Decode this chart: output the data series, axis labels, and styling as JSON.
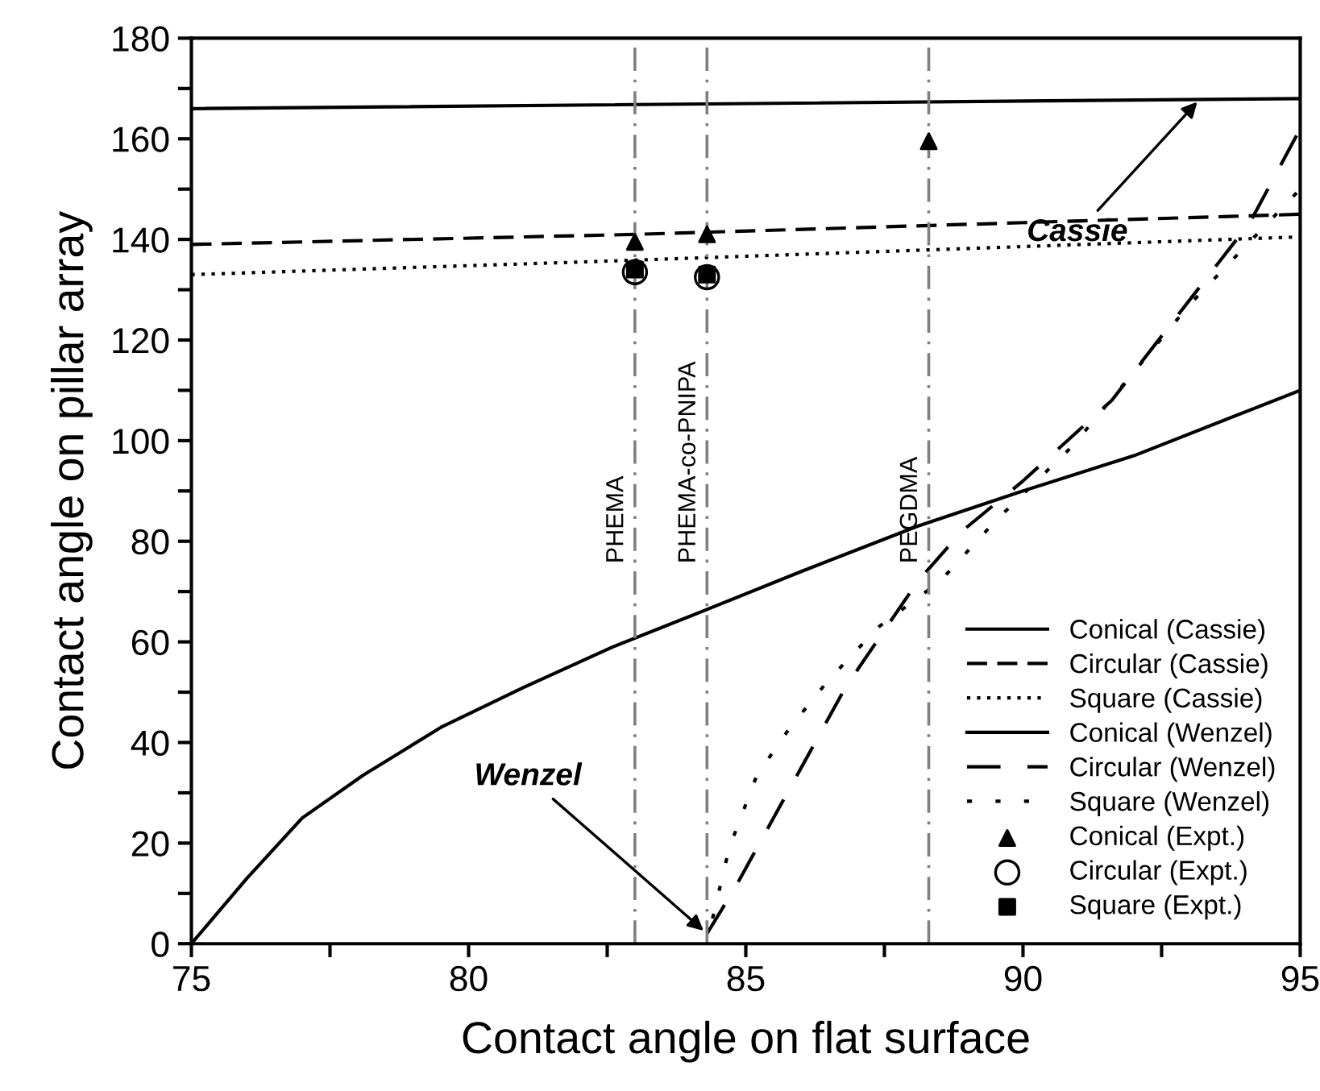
{
  "chart_data": {
    "type": "line",
    "xlabel": "Contact angle on flat surface",
    "ylabel": "Contact angle on pillar array",
    "xlim": [
      75,
      95
    ],
    "ylim": [
      0,
      180
    ],
    "xticks": [
      75,
      {
        "value": 77.5,
        "label": null
      },
      80,
      {
        "value": 82.5,
        "label": null
      },
      85,
      {
        "value": 87.5,
        "label": null
      },
      90,
      {
        "value": 92.5,
        "label": null
      },
      95
    ],
    "yticks": [
      0,
      {
        "value": 10,
        "label": null
      },
      20,
      {
        "value": 30,
        "label": null
      },
      40,
      {
        "value": 50,
        "label": null
      },
      60,
      {
        "value": 70,
        "label": null
      },
      80,
      {
        "value": 90,
        "label": null
      },
      100,
      {
        "value": 110,
        "label": null
      },
      120,
      {
        "value": 130,
        "label": null
      },
      140,
      {
        "value": 150,
        "label": null
      },
      160,
      {
        "value": 170,
        "label": null
      },
      180
    ],
    "grid": false,
    "legend": "bottom right",
    "series": [
      {
        "name": "Conical (Cassie)",
        "color": "#000000",
        "line_style": "solid",
        "marker": "none",
        "x": [
          75,
          95
        ],
        "values": [
          166,
          168
        ]
      },
      {
        "name": "Circular (Cassie)",
        "color": "#000000",
        "line_style": "dashed",
        "marker": "none",
        "x": [
          75,
          83,
          95
        ],
        "values": [
          139,
          141,
          145
        ]
      },
      {
        "name": "Square (Cassie)",
        "color": "#000000",
        "line_style": "dotted",
        "marker": "none",
        "x": [
          75,
          82,
          95
        ],
        "values": [
          133,
          135.5,
          140.5
        ]
      },
      {
        "name": "Conical (Wenzel)",
        "color": "#000000",
        "line_style": "solid",
        "marker": "none",
        "x": [
          75,
          76,
          77,
          78.1,
          79.5,
          81,
          82.6,
          84.2,
          86,
          88.1,
          90,
          92,
          95
        ],
        "values": [
          0,
          13,
          25,
          33.5,
          43,
          51,
          59,
          66,
          74,
          83,
          90,
          97,
          110
        ]
      },
      {
        "name": "Circular (Wenzel)",
        "color": "#000000",
        "line_style": "loosedashed",
        "marker": "none",
        "x": [
          84.3,
          84.8,
          86.8,
          88.1,
          88.9,
          90,
          91.6,
          94.1,
          95
        ],
        "values": [
          2,
          11,
          51,
          72,
          82,
          92,
          108,
          143.5,
          162
        ]
      },
      {
        "name": "Square (Wenzel)",
        "color": "#000000",
        "line_style": "loosedotted",
        "marker": "none",
        "x": [
          84.4,
          84.7,
          85.2,
          85.8,
          86.5,
          87.4,
          88.5,
          89.5,
          90.9,
          93,
          95
        ],
        "values": [
          5,
          19,
          33.5,
          43,
          52.5,
          63,
          72,
          84,
          99,
          127,
          150
        ]
      },
      {
        "name": "Conical (Expt.)",
        "type": "scatter",
        "color": "#000000",
        "marker": "triangle",
        "x": [
          83,
          84.3,
          88.3
        ],
        "values": [
          139.5,
          141,
          159.5
        ]
      },
      {
        "name": "Circular (Expt.)",
        "type": "scatter",
        "color": "#000000",
        "marker": "circle",
        "x": [
          83,
          84.3
        ],
        "values": [
          133.5,
          132.5
        ]
      },
      {
        "name": "Square (Expt.)",
        "type": "scatter",
        "color": "#000000",
        "marker": "square",
        "x": [
          83,
          84.3
        ],
        "values": [
          134,
          133
        ]
      }
    ],
    "ref_lines": [
      {
        "axis": "x",
        "value": 83,
        "label": "PHEMA",
        "color": "#808080",
        "line_style": "dashdot"
      },
      {
        "axis": "x",
        "value": 84.3,
        "label": "PHEMA-co-PNIPA",
        "color": "#808080",
        "line_style": "dashdot"
      },
      {
        "axis": "x",
        "value": 88.3,
        "label": "PEGDMA",
        "color": "#808080",
        "line_style": "dashdot"
      }
    ],
    "annotations": [
      {
        "text": "Cassie",
        "x": 93.2,
        "y": 168
      },
      {
        "text": "Wenzel",
        "x": 84.3,
        "y": 2
      }
    ]
  }
}
